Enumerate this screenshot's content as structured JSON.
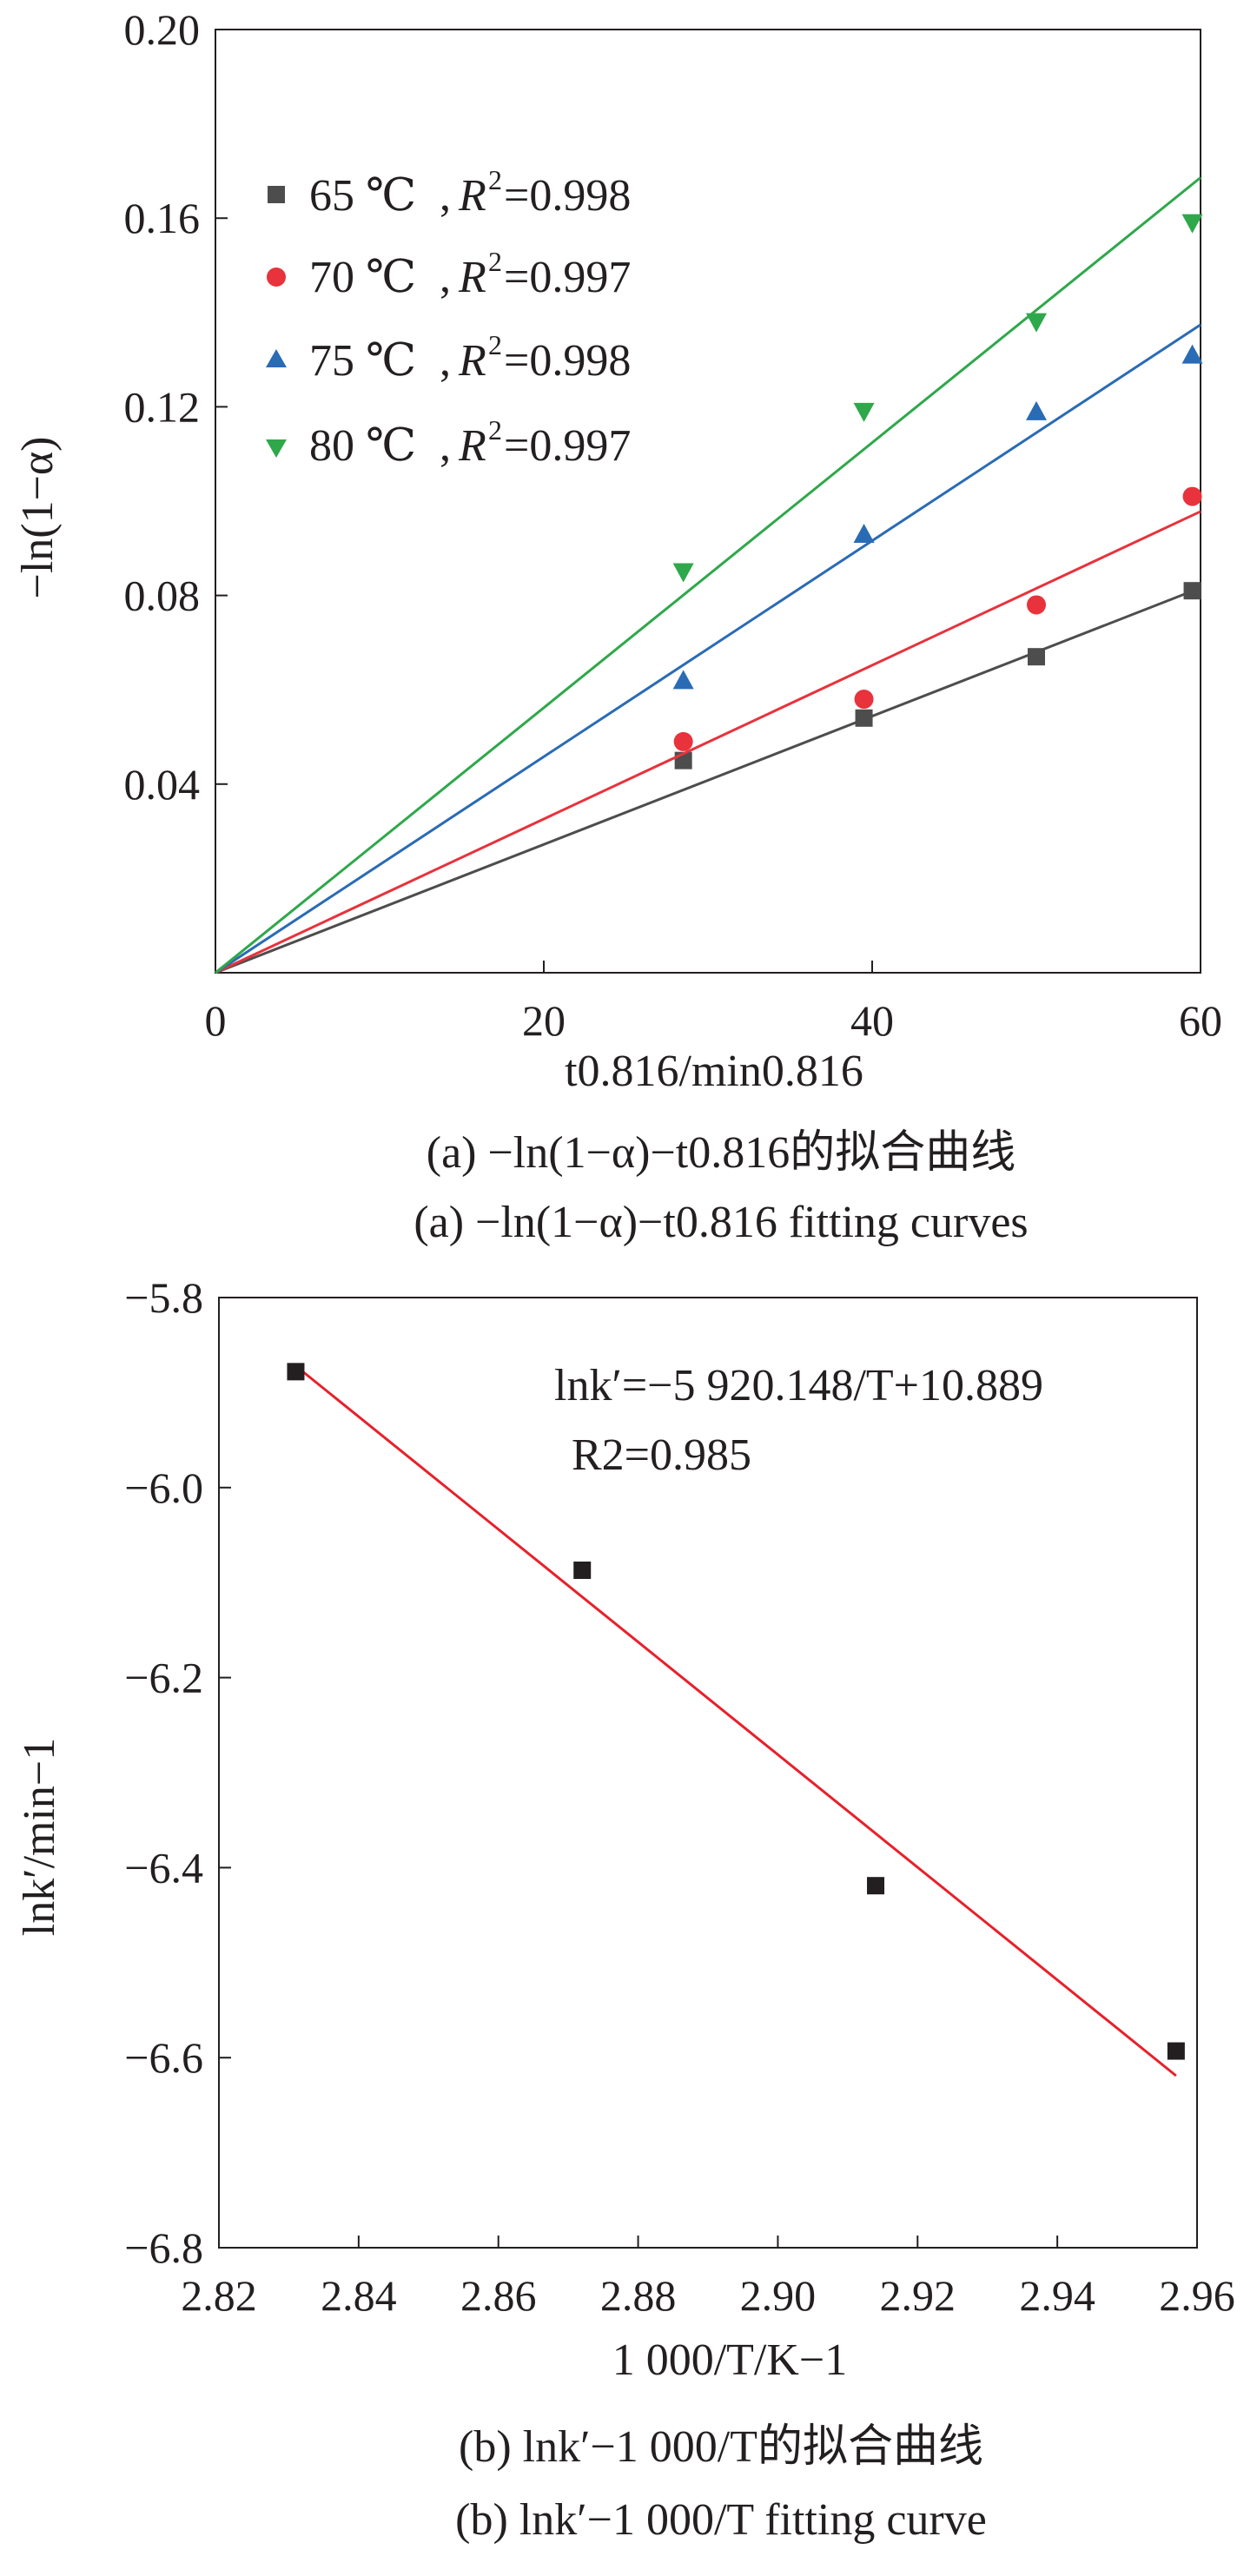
{
  "chart_data": [
    {
      "type": "scatter",
      "panel": "a",
      "ylabel": "−ln(1−α)",
      "xlabel": "t0.816/min0.816",
      "caption_cn": "(a) −ln(1−α)−t0.816的拟合曲线",
      "caption_en": "(a) −ln(1−α)−t0.816 fitting curves",
      "xlim": [
        0,
        60
      ],
      "ylim": [
        0,
        0.2
      ],
      "x_ticks": [
        "0",
        "20",
        "40",
        "60"
      ],
      "x_tick_values": [
        0,
        20,
        40,
        60
      ],
      "y_ticks": [
        "0.04",
        "0.08",
        "0.12",
        "0.16",
        "0.20"
      ],
      "y_tick_values": [
        0.04,
        0.08,
        0.12,
        0.16,
        0.2
      ],
      "grid": false,
      "legend_position": "top-left",
      "series": [
        {
          "name": "65 ℃, R2=0.998",
          "temp": "65 ℃",
          "r2": "=0.998",
          "color": "#4d4d4d",
          "marker": "square",
          "x": [
            28.5,
            39.5,
            50.0,
            59.5
          ],
          "y": [
            0.045,
            0.054,
            0.067,
            0.081
          ],
          "fit_slope": 0.00136
        },
        {
          "name": "70 ℃, R2=0.997",
          "temp": "70 ℃",
          "r2": "=0.997",
          "color": "#e8323c",
          "marker": "circle",
          "x": [
            28.5,
            39.5,
            50.0,
            59.5
          ],
          "y": [
            0.049,
            0.058,
            0.078,
            0.101
          ],
          "fit_slope": 0.00163
        },
        {
          "name": "75 ℃, R2=0.998",
          "temp": "75 ℃",
          "r2": "=0.998",
          "color": "#2a6bb5",
          "marker": "triangle-up",
          "x": [
            28.5,
            39.5,
            50.0,
            59.5
          ],
          "y": [
            0.062,
            0.093,
            0.119,
            0.131
          ],
          "fit_slope": 0.00229
        },
        {
          "name": "80 ℃, R2=0.997",
          "temp": "80 ℃",
          "r2": "=0.997",
          "color": "#2ea84a",
          "marker": "triangle-down",
          "x": [
            28.5,
            39.5,
            50.0,
            59.5
          ],
          "y": [
            0.085,
            0.119,
            0.138,
            0.159
          ],
          "fit_slope": 0.00281
        }
      ]
    },
    {
      "type": "scatter",
      "panel": "b",
      "ylabel": "lnk′/min−1",
      "xlabel": "1 000/T/K−1",
      "caption_cn": "(b) lnk′−1 000/T的拟合曲线",
      "caption_en": "(b) lnk′−1 000/T fitting curve",
      "xlim": [
        2.82,
        2.96
      ],
      "ylim": [
        -6.8,
        -5.8
      ],
      "x_ticks": [
        "2.82",
        "2.84",
        "2.86",
        "2.88",
        "2.90",
        "2.92",
        "2.94",
        "2.96"
      ],
      "x_tick_values": [
        2.82,
        2.84,
        2.86,
        2.88,
        2.9,
        2.92,
        2.94,
        2.96
      ],
      "y_ticks": [
        "−5.8",
        "−6.0",
        "−6.2",
        "−6.4",
        "−6.6",
        "−6.8"
      ],
      "y_tick_values": [
        -5.8,
        -6.0,
        -6.2,
        -6.4,
        -6.6,
        -6.8
      ],
      "grid": false,
      "equation": "lnk′=−5 920.148/T+10.889",
      "r2": "R2=0.985",
      "points": {
        "x": [
          2.831,
          2.872,
          2.914,
          2.957
        ],
        "y": [
          -5.878,
          -6.087,
          -6.419,
          -6.593
        ],
        "color": "#231f20",
        "marker": "square"
      },
      "fit": {
        "x": [
          2.831,
          2.957
        ],
        "y": [
          -5.872,
          -6.619
        ],
        "color": "#e8202a"
      }
    }
  ]
}
